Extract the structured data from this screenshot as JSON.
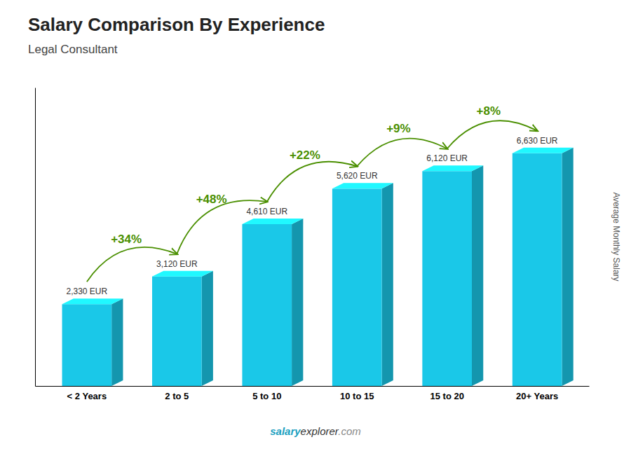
{
  "chart_data": {
    "type": "bar",
    "title": "Salary Comparison By Experience",
    "subtitle": "Legal Consultant",
    "y_label": "Average Monthly Salary",
    "categories": [
      "< 2 Years",
      "2 to 5",
      "5 to 10",
      "10 to 15",
      "15 to 20",
      "20+ Years"
    ],
    "values": [
      2330,
      3120,
      4610,
      5620,
      6120,
      6630
    ],
    "value_labels": [
      "2,330 EUR",
      "3,120 EUR",
      "4,610 EUR",
      "5,620 EUR",
      "6,120 EUR",
      "6,630 EUR"
    ],
    "data_labels": true,
    "change_labels": [
      "+34%",
      "+48%",
      "+22%",
      "+9%",
      "+8%"
    ],
    "footer": [
      "salary",
      "explorer",
      ".com"
    ],
    "color": "#1ac8e8",
    "ylim": [
      0,
      8500
    ],
    "yticks": [],
    "tick_labels": "x",
    "grid": false
  }
}
